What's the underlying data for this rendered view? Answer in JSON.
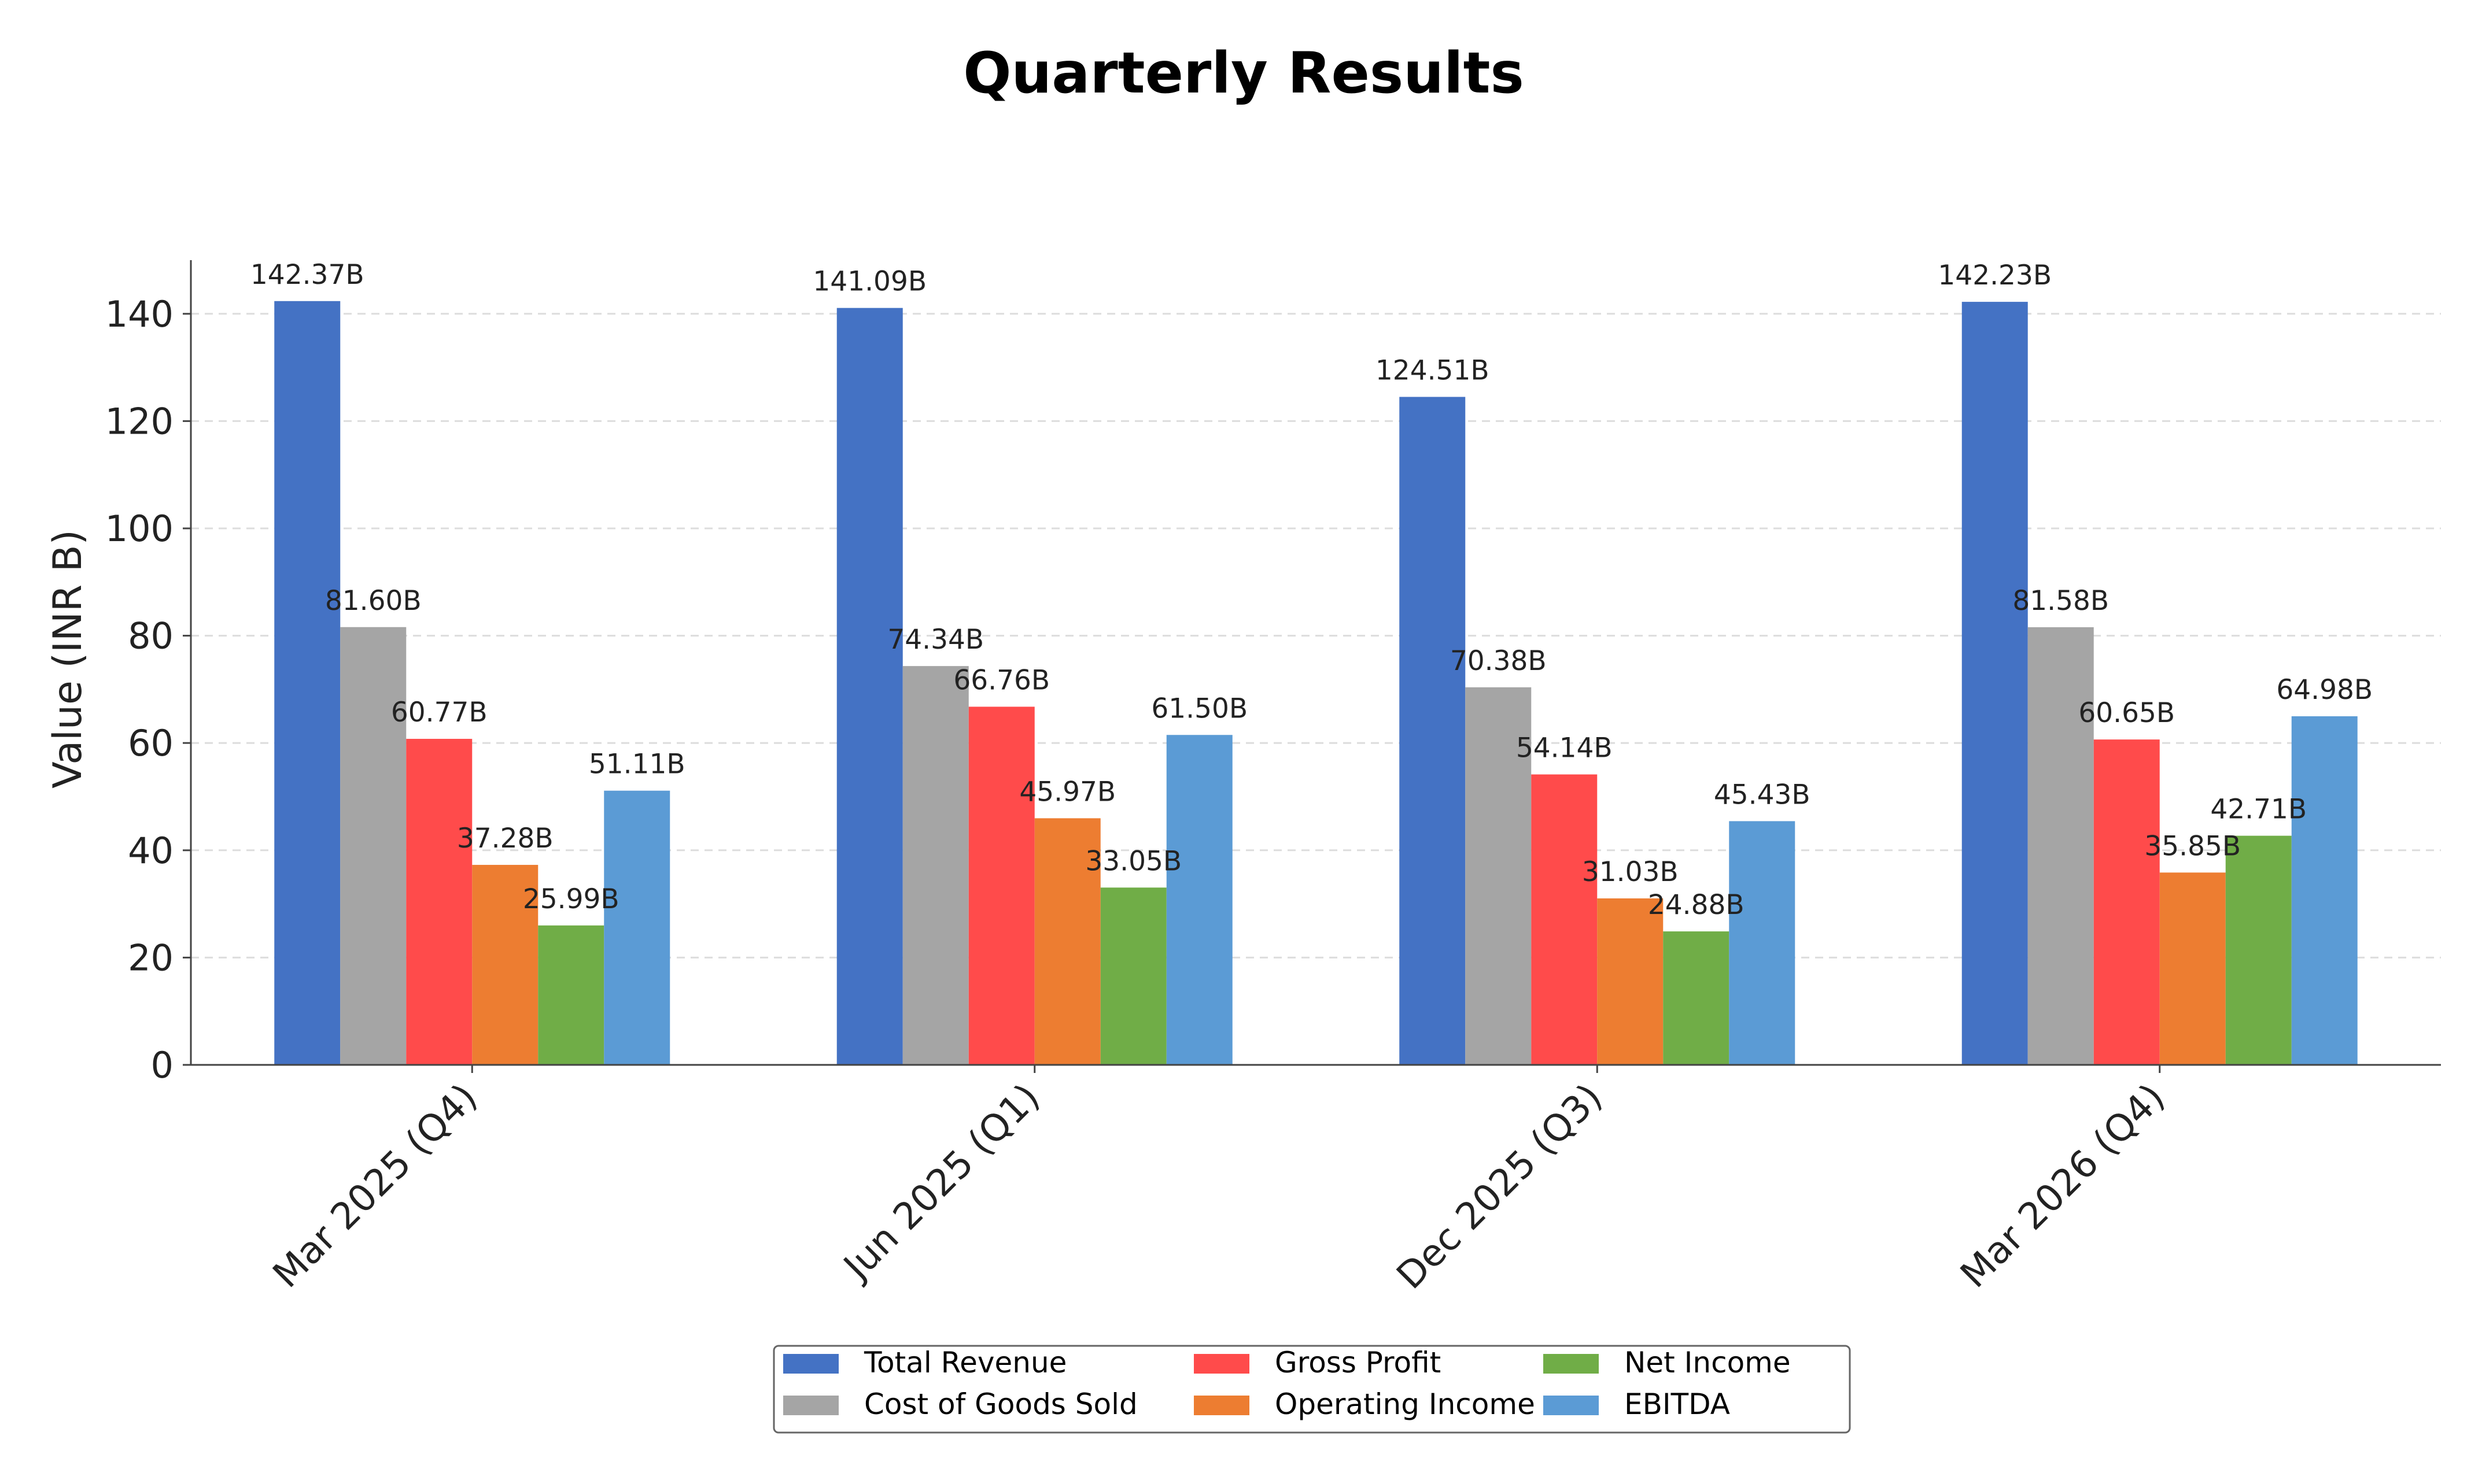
{
  "chart_data": {
    "type": "bar",
    "title": "Quarterly Results",
    "xlabel": "",
    "ylabel": "Value (INR B)",
    "ylim": [
      0,
      150
    ],
    "yticks": [
      0,
      20,
      40,
      60,
      80,
      100,
      120,
      140
    ],
    "grid": true,
    "legend_position": "bottom",
    "label_suffix": "B",
    "categories": [
      "Mar 2025 (Q4)",
      "Jun 2025 (Q1)",
      "Dec 2025 (Q3)",
      "Mar 2026 (Q4)"
    ],
    "series": [
      {
        "name": "Total Revenue",
        "color": "#4472C4",
        "values": [
          142.37,
          141.09,
          124.51,
          142.23
        ]
      },
      {
        "name": "Cost of Goods Sold",
        "color": "#A5A5A5",
        "values": [
          81.6,
          74.34,
          70.38,
          81.58
        ]
      },
      {
        "name": "Gross Profit",
        "color": "#FF4B4B",
        "values": [
          60.77,
          66.76,
          54.14,
          60.65
        ]
      },
      {
        "name": "Operating Income",
        "color": "#ED7D31",
        "values": [
          37.28,
          45.97,
          31.03,
          35.85
        ]
      },
      {
        "name": "Net Income",
        "color": "#70AD47",
        "values": [
          25.99,
          33.05,
          24.88,
          42.71
        ]
      },
      {
        "name": "EBITDA",
        "color": "#5B9BD5",
        "values": [
          51.11,
          61.5,
          45.43,
          64.98
        ]
      }
    ]
  }
}
